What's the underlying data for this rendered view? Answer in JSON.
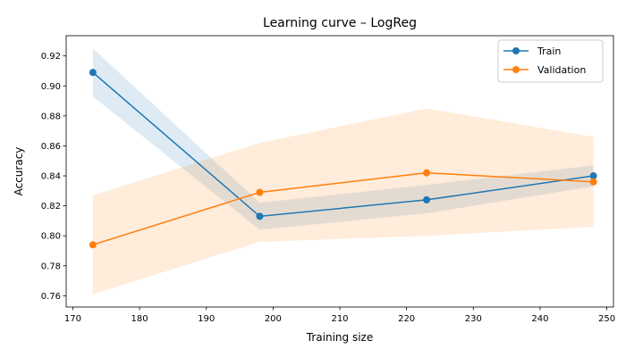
{
  "chart_data": {
    "type": "line",
    "title": "Learning curve – LogReg",
    "xlabel": "Training size",
    "ylabel": "Accuracy",
    "xlim": [
      169,
      251
    ],
    "ylim": [
      0.7525,
      0.9335
    ],
    "xticks": [
      170,
      180,
      190,
      200,
      210,
      220,
      230,
      240,
      250
    ],
    "yticks": [
      0.76,
      0.78,
      0.8,
      0.82,
      0.84,
      0.86,
      0.88,
      0.9,
      0.92
    ],
    "xtick_labels": [
      "170",
      "180",
      "190",
      "200",
      "210",
      "220",
      "230",
      "240",
      "250"
    ],
    "ytick_labels": [
      "0.76",
      "0.78",
      "0.80",
      "0.82",
      "0.84",
      "0.86",
      "0.88",
      "0.90",
      "0.92"
    ],
    "grid": false,
    "legend_position": "top-right",
    "x": [
      173,
      198,
      223,
      248
    ],
    "series": [
      {
        "name": "Train",
        "color": "#1f77b4",
        "values": [
          0.909,
          0.813,
          0.824,
          0.84
        ],
        "band_lower": [
          0.893,
          0.804,
          0.815,
          0.833
        ],
        "band_upper": [
          0.925,
          0.822,
          0.834,
          0.847
        ],
        "band_opacity": 0.15
      },
      {
        "name": "Validation",
        "color": "#ff7f0e",
        "values": [
          0.794,
          0.829,
          0.842,
          0.836
        ],
        "band_lower": [
          0.761,
          0.796,
          0.8,
          0.806
        ],
        "band_upper": [
          0.827,
          0.862,
          0.885,
          0.866
        ],
        "band_opacity": 0.15
      }
    ]
  }
}
